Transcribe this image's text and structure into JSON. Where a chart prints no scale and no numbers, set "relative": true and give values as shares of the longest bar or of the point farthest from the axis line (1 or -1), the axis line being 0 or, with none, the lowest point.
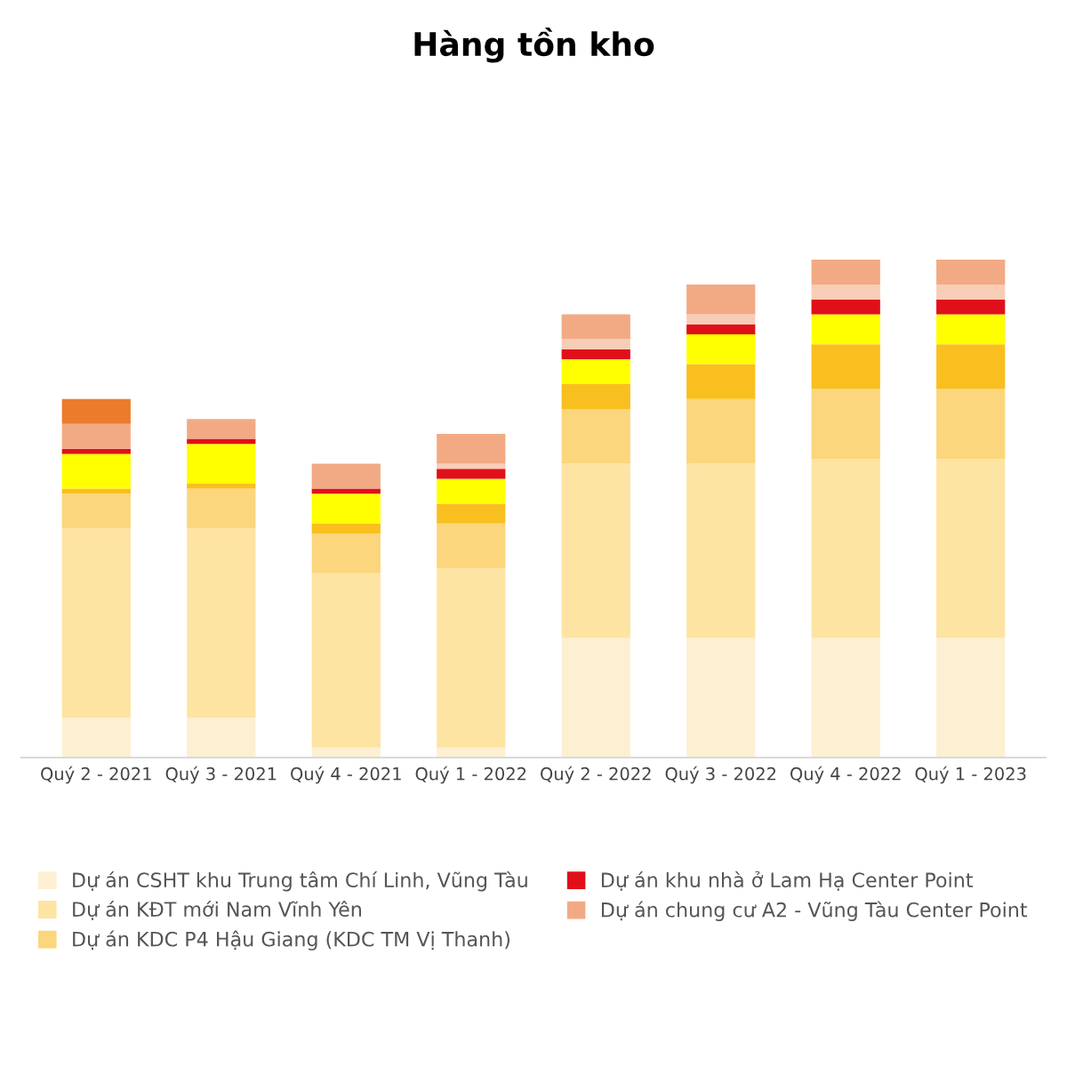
{
  "chart_data": {
    "type": "bar",
    "title": "Hàng tồn kho",
    "stacked": true,
    "relative": true,
    "legend": "bottom",
    "categories": [
      "Quý 2 - 2021",
      "Quý 3 - 2021",
      "Quý 4 - 2021",
      "Quý 1 - 2022",
      "Quý 2 - 2022",
      "Quý 3 - 2022",
      "Quý 4 - 2022",
      "Quý 1 - 2023"
    ],
    "series": [
      {
        "name": "Dự án CSHT khu Trung tâm Chí Linh, Vũng Tàu",
        "color": "#fdf0d2",
        "values": [
          0.08,
          0.08,
          0.02,
          0.02,
          0.24,
          0.24,
          0.24,
          0.24
        ]
      },
      {
        "name": "Dự án KĐT mới Nam Vĩnh Yên",
        "color": "#fde4a3",
        "values": [
          0.38,
          0.38,
          0.35,
          0.36,
          0.35,
          0.35,
          0.36,
          0.36
        ]
      },
      {
        "name": "Dự án KDC P4 Hậu Giang (KDC TM Vị Thanh)",
        "color": "#fbd67c",
        "values": [
          0.07,
          0.08,
          0.08,
          0.09,
          0.11,
          0.13,
          0.14,
          0.14
        ]
      },
      {
        "color": "#f9bf1e",
        "values": [
          0.01,
          0.01,
          0.02,
          0.04,
          0.05,
          0.07,
          0.09,
          0.09
        ]
      },
      {
        "color": "#ffff00",
        "values": [
          0.07,
          0.08,
          0.06,
          0.05,
          0.05,
          0.06,
          0.06,
          0.06
        ]
      },
      {
        "name": "Dự án khu nhà ở Lam Hạ Center Point",
        "color": "#e0101a",
        "values": [
          0.01,
          0.01,
          0.01,
          0.02,
          0.02,
          0.02,
          0.03,
          0.03
        ]
      },
      {
        "color": "#f8cdb6",
        "values": [
          0,
          0,
          0,
          0.01,
          0.02,
          0.02,
          0.03,
          0.03
        ]
      },
      {
        "name": "Dự án chung cư A2 - Vũng Tàu Center Point",
        "color": "#f2aa84",
        "values": [
          0.05,
          0.04,
          0.05,
          0.06,
          0.05,
          0.06,
          0.05,
          0.05
        ]
      },
      {
        "color": "#eb7c2e",
        "values": [
          0.05,
          0,
          0,
          0,
          0,
          0,
          0,
          0
        ]
      }
    ]
  }
}
